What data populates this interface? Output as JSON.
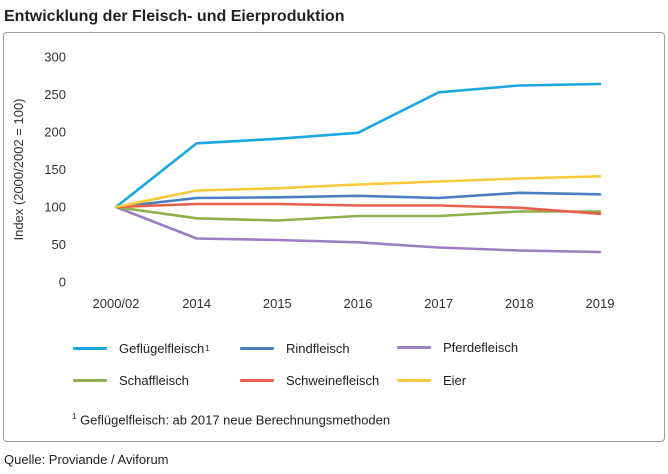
{
  "title": "Entwicklung der Fleisch- und Eierproduktion",
  "source": "Quelle:  Proviande / Aviforum",
  "footnote": {
    "marker": "1",
    "text": " Geflügelfleisch: ab 2017 neue Berechnungsmethoden"
  },
  "chart_data": {
    "type": "line",
    "title": "Entwicklung der Fleisch- und Eierproduktion",
    "xlabel": "",
    "ylabel": "Index (2000/2002 = 100)",
    "categories": [
      "2000/02",
      "2014",
      "2015",
      "2016",
      "2017",
      "2018",
      "2019"
    ],
    "ylim": [
      0,
      300
    ],
    "yticks": [
      "0",
      "50",
      "100",
      "150",
      "200",
      "250",
      "300"
    ],
    "grid": false,
    "legend_position": "bottom",
    "series": [
      {
        "name": "Geflügelfleisch",
        "marker": "1",
        "color": "#1ba8e0",
        "values": [
          100,
          185,
          191,
          199,
          253,
          262,
          264
        ]
      },
      {
        "name": "Rindfleisch",
        "marker": "",
        "color": "#4a7fbf",
        "values": [
          100,
          112,
          113,
          115,
          112,
          119,
          117
        ]
      },
      {
        "name": "Pferdefleisch",
        "marker": "",
        "color": "#9b7fc0",
        "values": [
          100,
          58,
          56,
          53,
          46,
          42,
          40
        ]
      },
      {
        "name": "Schaffleisch",
        "marker": "",
        "color": "#8fb04a",
        "values": [
          100,
          85,
          82,
          88,
          88,
          94,
          94
        ]
      },
      {
        "name": "Schweinefleisch",
        "marker": "",
        "color": "#e8604c",
        "values": [
          100,
          104,
          104,
          102,
          102,
          99,
          91
        ]
      },
      {
        "name": "Eier",
        "marker": "",
        "color": "#f9c93c",
        "values": [
          100,
          122,
          125,
          130,
          134,
          138,
          141
        ]
      }
    ]
  }
}
